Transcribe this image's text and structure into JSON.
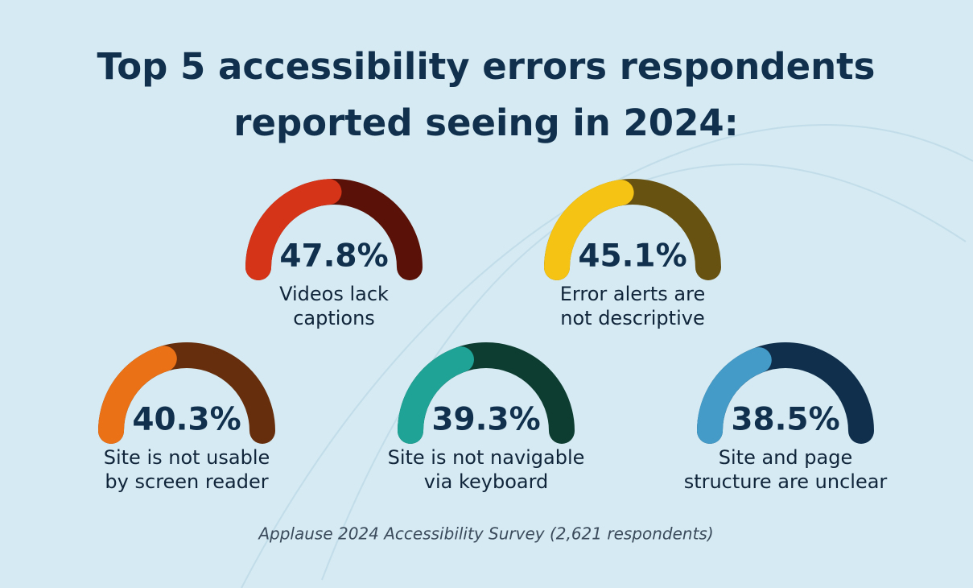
{
  "chart_data": {
    "type": "gauge",
    "title": [
      "Top 5 accessibility errors respondents",
      "reported seeing in 2024:"
    ],
    "categories": [
      [
        "Videos lack",
        "captions"
      ],
      [
        "Error alerts are",
        "not descriptive"
      ],
      [
        "Site is not usable",
        "by screen reader"
      ],
      [
        "Site is not navigable",
        "via keyboard"
      ],
      [
        "Site and page",
        "structure are unclear"
      ]
    ],
    "values": [
      47.8,
      45.1,
      40.3,
      39.3,
      38.5
    ],
    "value_labels": [
      "47.8%",
      "45.1%",
      "40.3%",
      "39.3%",
      "38.5%"
    ],
    "colors": [
      "#d63418",
      "#f5c314",
      "#ea7115",
      "#1ea396",
      "#449bc7"
    ],
    "track_colors": [
      "#5a1208",
      "#685212",
      "#662e0c",
      "#0d3c30",
      "#0f2f4c"
    ],
    "ylim": [
      0,
      100
    ],
    "source": "Applause 2024 Accessibility Survey (2,621 respondents)"
  }
}
